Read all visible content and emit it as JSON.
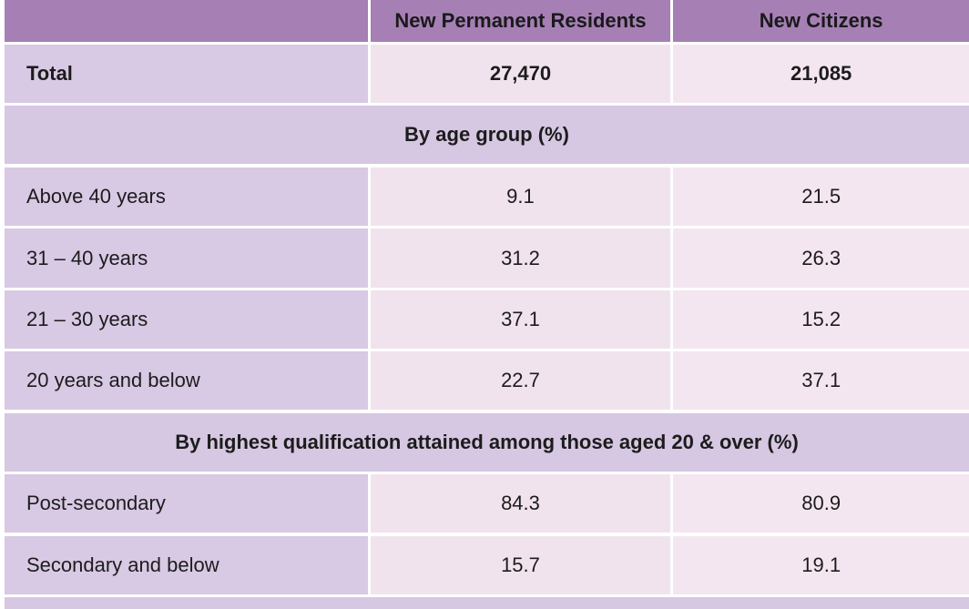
{
  "chart_data": {
    "type": "table",
    "columns": [
      "",
      "New Permanent Residents",
      "New Citizens"
    ],
    "total": {
      "label": "Total",
      "values": [
        "27,470",
        "21,085"
      ]
    },
    "sections": [
      {
        "title": "By age group (%)",
        "rows": [
          {
            "label": "Above 40 years",
            "values": [
              "9.1",
              "21.5"
            ]
          },
          {
            "label": "31 – 40 years",
            "values": [
              "31.2",
              "26.3"
            ]
          },
          {
            "label": "21 – 30 years",
            "values": [
              "37.1",
              "15.2"
            ]
          },
          {
            "label": "20 years and below",
            "values": [
              "22.7",
              "37.1"
            ]
          }
        ]
      },
      {
        "title": "By highest qualification attained among those aged 20 & over (%)",
        "rows": [
          {
            "label": "Post-secondary",
            "values": [
              "84.3",
              "80.9"
            ]
          },
          {
            "label": "Secondary and below",
            "values": [
              "15.7",
              "19.1"
            ]
          }
        ]
      }
    ]
  },
  "colors": {
    "header": "#a67fb5",
    "label_cell": "#d8c9e4",
    "value_cell": "#f1e3ee",
    "section_band": "#d6c7e2"
  }
}
